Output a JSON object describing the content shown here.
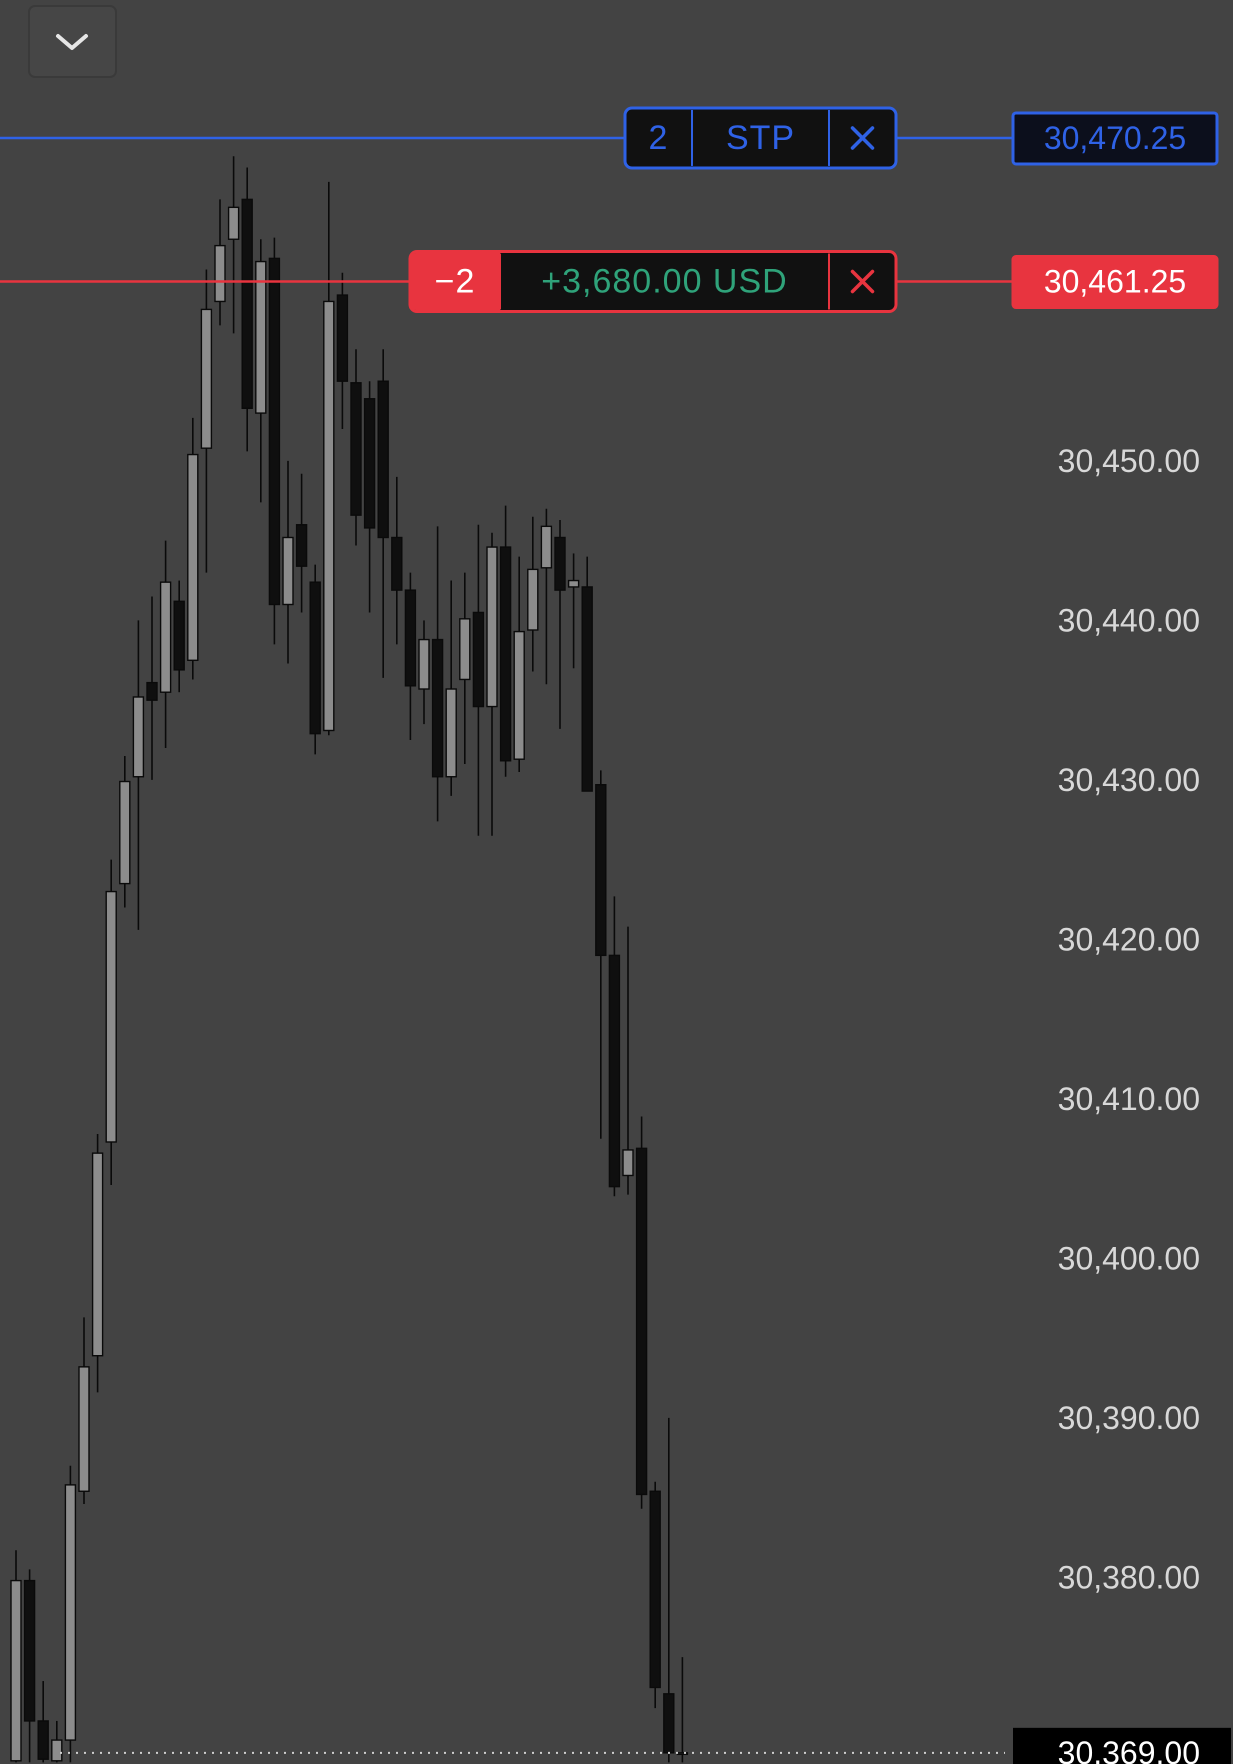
{
  "chart_data": {
    "type": "candlestick",
    "background": "#434343",
    "up_color": "#8c8c8c",
    "down_color": "#0f0f0f",
    "ylim": [
      30368.3,
      30478.9
    ],
    "yticks": [
      {
        "value": 30450,
        "label": "30,450.00"
      },
      {
        "value": 30440,
        "label": "30,440.00"
      },
      {
        "value": 30430,
        "label": "30,430.00"
      },
      {
        "value": 30420,
        "label": "30,420.00"
      },
      {
        "value": 30410,
        "label": "30,410.00"
      },
      {
        "value": 30400,
        "label": "30,400.00"
      },
      {
        "value": 30390,
        "label": "30,390.00"
      },
      {
        "value": 30380,
        "label": "30,380.00"
      }
    ],
    "open": [
      30368.5,
      30379.8,
      30371.0,
      30368.5,
      30369.8,
      30385.4,
      30393.9,
      30407.3,
      30423.5,
      30430.2,
      30436.1,
      30435.5,
      30441.2,
      30437.5,
      30450.8,
      30460.0,
      30463.9,
      30466.4,
      30453.0,
      30462.7,
      30441.0,
      30446.0,
      30442.4,
      30433.1,
      30460.4,
      30454.9,
      30453.9,
      30455.0,
      30445.2,
      30441.9,
      30435.7,
      30438.8,
      30430.2,
      30436.3,
      30440.5,
      30434.6,
      30444.6,
      30431.3,
      30439.4,
      30443.3,
      30445.2,
      30442.1,
      30442.1,
      30429.7,
      30419.0,
      30405.2,
      30406.9,
      30385.4,
      30372.7,
      30369.0
    ],
    "high": [
      30381.7,
      30380.5,
      30373.5,
      30371.0,
      30387.0,
      30396.3,
      30407.8,
      30425.0,
      30431.5,
      30440.0,
      30441.5,
      30445.0,
      30442.5,
      30452.7,
      30462.0,
      30466.4,
      30469.1,
      30468.4,
      30463.9,
      30464.0,
      30450.0,
      30449.2,
      30443.5,
      30467.5,
      30461.8,
      30457.0,
      30455.0,
      30457.0,
      30449.0,
      30443.0,
      30440.0,
      30445.9,
      30442.5,
      30443.0,
      30446.0,
      30445.5,
      30447.2,
      30444.0,
      30446.5,
      30447.0,
      30446.3,
      30444.2,
      30444.0,
      30430.6,
      30422.7,
      30420.8,
      30408.9,
      30386.0,
      30390.0,
      30375.0
    ],
    "low": [
      30368.4,
      30368.4,
      30368.4,
      30368.4,
      30368.4,
      30384.6,
      30391.6,
      30404.6,
      30422.0,
      30420.6,
      30430.0,
      30432.0,
      30435.5,
      30436.3,
      30443.0,
      30458.5,
      30458.0,
      30450.6,
      30447.4,
      30438.5,
      30437.3,
      30440.5,
      30431.6,
      30432.8,
      30452.0,
      30444.7,
      30440.5,
      30436.4,
      30438.5,
      30432.5,
      30433.5,
      30427.4,
      30429.0,
      30431.0,
      30426.5,
      30426.5,
      30430.2,
      30430.5,
      30436.8,
      30436.0,
      30433.2,
      30437.0,
      30429.3,
      30407.5,
      30403.9,
      30404.0,
      30384.3,
      30371.8,
      30368.4,
      30368.4
    ],
    "close": [
      30379.8,
      30371.0,
      30368.6,
      30369.8,
      30385.8,
      30393.2,
      30406.6,
      30423.0,
      30429.9,
      30435.2,
      30435.0,
      30442.4,
      30436.9,
      30450.4,
      30459.5,
      30463.5,
      30465.9,
      30453.3,
      30462.5,
      30441.0,
      30445.2,
      30443.4,
      30432.9,
      30460.0,
      30455.0,
      30446.6,
      30445.8,
      30445.2,
      30441.9,
      30435.9,
      30438.8,
      30430.2,
      30435.7,
      30440.1,
      30434.6,
      30444.6,
      30431.2,
      30439.3,
      30443.2,
      30445.9,
      30441.9,
      30442.5,
      30429.3,
      30419.0,
      30404.5,
      30406.8,
      30385.2,
      30373.1,
      30369.0,
      30369.0
    ],
    "stop_order": {
      "quantity": 2,
      "type": "STP",
      "price": {
        "value": 30470.25,
        "label": "30,470.25"
      },
      "color": "#2f62e6"
    },
    "position": {
      "quantity": "−2",
      "pnl": "+3,680.00 USD",
      "pnl_color": "#2fa37a",
      "price": {
        "value": 30461.25,
        "label": "30,461.25"
      },
      "color": "#e8343f"
    },
    "last_price": {
      "value": 30369,
      "label": "30,369.00"
    }
  }
}
